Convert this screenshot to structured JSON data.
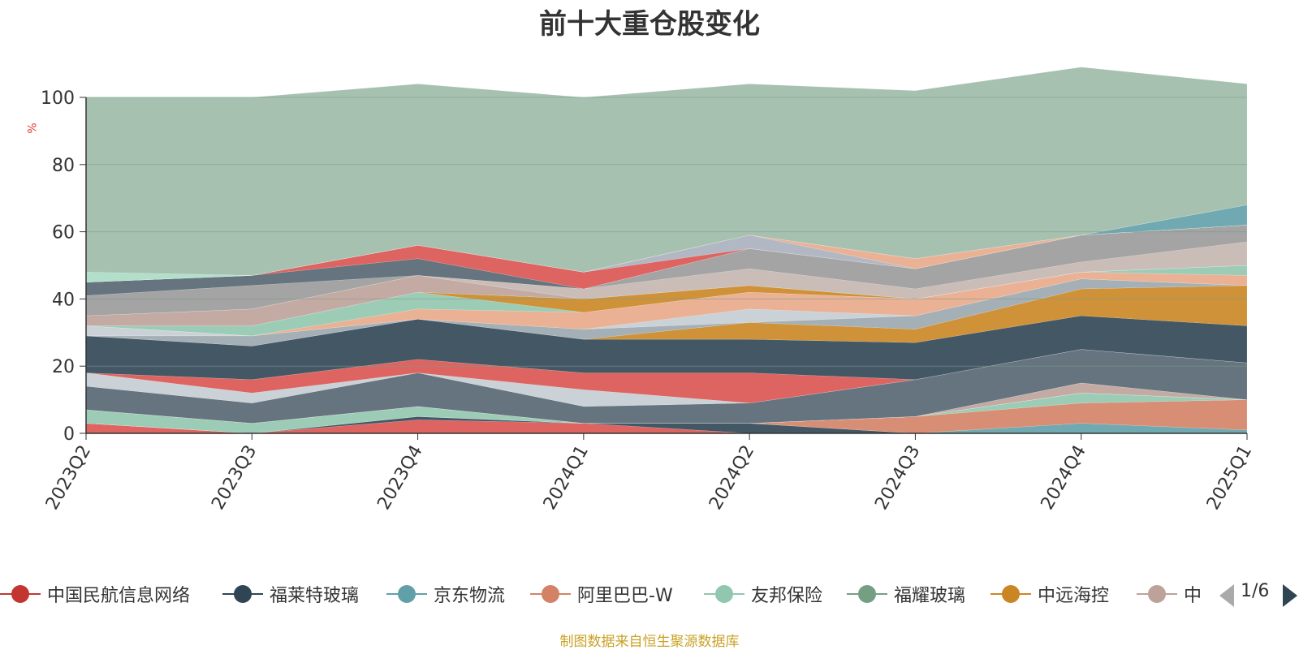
{
  "chart_data": {
    "type": "area",
    "title": "前十大重仓股变化",
    "ylabel": "%",
    "ylim": [
      0,
      100
    ],
    "yticks": [
      0,
      20,
      40,
      60,
      80,
      100
    ],
    "grid": true,
    "stacked": true,
    "categories": [
      "2023Q2",
      "2023Q3",
      "2023Q4",
      "2024Q1",
      "2024Q2",
      "2024Q3",
      "2024Q4",
      "2025Q1"
    ],
    "series": [
      {
        "name": "中国民航信息网络",
        "color": "#d9534f",
        "values": [
          3,
          0,
          4,
          3,
          0,
          0,
          0,
          0
        ]
      },
      {
        "name": "福莱特玻璃",
        "color": "#2f4554",
        "values": [
          0,
          0,
          1,
          0,
          3,
          0,
          0,
          0
        ]
      },
      {
        "name": "京东物流",
        "color": "#61a0a8",
        "values": [
          0,
          0,
          0,
          0,
          0,
          0,
          3,
          1
        ]
      },
      {
        "name": "阿里巴巴-W",
        "color": "#d48265",
        "values": [
          0,
          0,
          0,
          0,
          0,
          5,
          6,
          9
        ]
      },
      {
        "name": "友邦保险",
        "color": "#91c7ae",
        "values": [
          4,
          3,
          3,
          0,
          0,
          0,
          3,
          0
        ]
      },
      {
        "name": "福耀玻璃",
        "color": "#749f83",
        "values": [
          0,
          0,
          0,
          0,
          0,
          0,
          0,
          0
        ]
      },
      {
        "name": "中远海控",
        "color": "#ca8622",
        "values": [
          0,
          0,
          0,
          0,
          0,
          0,
          0,
          0
        ]
      },
      {
        "name": "中",
        "color": "#bda29a",
        "values": [
          0,
          0,
          0,
          0,
          0,
          0,
          3,
          0
        ]
      },
      {
        "name": "",
        "color": "#aab0bc",
        "values": [
          0,
          0,
          0,
          0,
          0,
          0,
          0,
          0
        ]
      },
      {
        "name": "",
        "color": "#546570",
        "values": [
          7,
          6,
          10,
          5,
          6,
          11,
          10,
          11
        ]
      },
      {
        "name": "",
        "color": "#c4ccd3",
        "values": [
          4,
          3,
          0,
          5,
          0,
          0,
          0,
          0
        ]
      },
      {
        "name": "",
        "color": "#d9534f",
        "values": [
          0,
          4,
          4,
          5,
          9,
          0,
          0,
          0
        ]
      },
      {
        "name": "",
        "color": "#2f4554",
        "values": [
          11,
          10,
          12,
          10,
          10,
          11,
          10,
          11
        ]
      },
      {
        "name": "",
        "color": "#ca8622",
        "values": [
          0,
          0,
          0,
          0,
          5,
          4,
          8,
          12
        ]
      },
      {
        "name": "",
        "color": "#9aa7ae",
        "values": [
          0,
          3,
          0,
          3,
          0,
          4,
          3,
          0
        ]
      },
      {
        "name": "",
        "color": "#c4ccd3",
        "values": [
          3,
          0,
          0,
          0,
          4,
          0,
          0,
          0
        ]
      },
      {
        "name": "",
        "color": "#e8a98a",
        "values": [
          0,
          0,
          3,
          5,
          5,
          5,
          2,
          3
        ]
      },
      {
        "name": "",
        "color": "#91c7ae",
        "values": [
          0,
          3,
          5,
          0,
          0,
          0,
          0,
          3
        ]
      },
      {
        "name": "",
        "color": "#ca8622",
        "values": [
          0,
          0,
          0,
          4,
          2,
          0,
          0,
          0
        ]
      },
      {
        "name": "",
        "color": "#bda29a",
        "values": [
          3,
          5,
          5,
          0,
          0,
          0,
          0,
          0
        ]
      },
      {
        "name": "",
        "color": "#c4b5ae",
        "values": [
          0,
          0,
          0,
          3,
          5,
          3,
          3,
          7
        ]
      },
      {
        "name": "",
        "color": "#9a9a9a",
        "values": [
          6,
          7,
          0,
          0,
          6,
          6,
          8,
          5
        ]
      },
      {
        "name": "",
        "color": "#546570",
        "values": [
          4,
          3,
          5,
          0,
          0,
          0,
          0,
          0
        ]
      },
      {
        "name": "",
        "color": "#d9534f",
        "values": [
          0,
          0,
          4,
          5,
          0,
          0,
          0,
          0
        ]
      },
      {
        "name": "",
        "color": "#aab0bc",
        "values": [
          0,
          0,
          0,
          0,
          4,
          0,
          0,
          0
        ]
      },
      {
        "name": "",
        "color": "#e8a98a",
        "values": [
          0,
          0,
          0,
          0,
          0,
          3,
          0,
          0
        ]
      },
      {
        "name": "",
        "color": "#61a0a8",
        "values": [
          0,
          0,
          0,
          0,
          0,
          0,
          0,
          6
        ]
      },
      {
        "name": "",
        "color": "#a8dcc4",
        "values": [
          3,
          0,
          0,
          0,
          0,
          0,
          0,
          0
        ]
      },
      {
        "name": "",
        "color": "#9dbaa9",
        "values": [
          52,
          53,
          48,
          52,
          45,
          50,
          50,
          36
        ]
      }
    ]
  },
  "legend": {
    "items": [
      {
        "label": "中国民航信息网络",
        "color": "#c23531"
      },
      {
        "label": "福莱特玻璃",
        "color": "#2f4554"
      },
      {
        "label": "京东物流",
        "color": "#61a0a8"
      },
      {
        "label": "阿里巴巴-W",
        "color": "#d48265"
      },
      {
        "label": "友邦保险",
        "color": "#91c7ae"
      },
      {
        "label": "福耀玻璃",
        "color": "#749f83"
      },
      {
        "label": "中远海控",
        "color": "#ca8622"
      },
      {
        "label": "中",
        "color": "#bda29a"
      }
    ],
    "page_text": "1/6"
  },
  "source_note": "制图数据来自恒生聚源数据库",
  "colors": {
    "axis": "#333333",
    "grid": "#7f9a8c",
    "unit": "#e53935",
    "note": "#c9a227"
  }
}
